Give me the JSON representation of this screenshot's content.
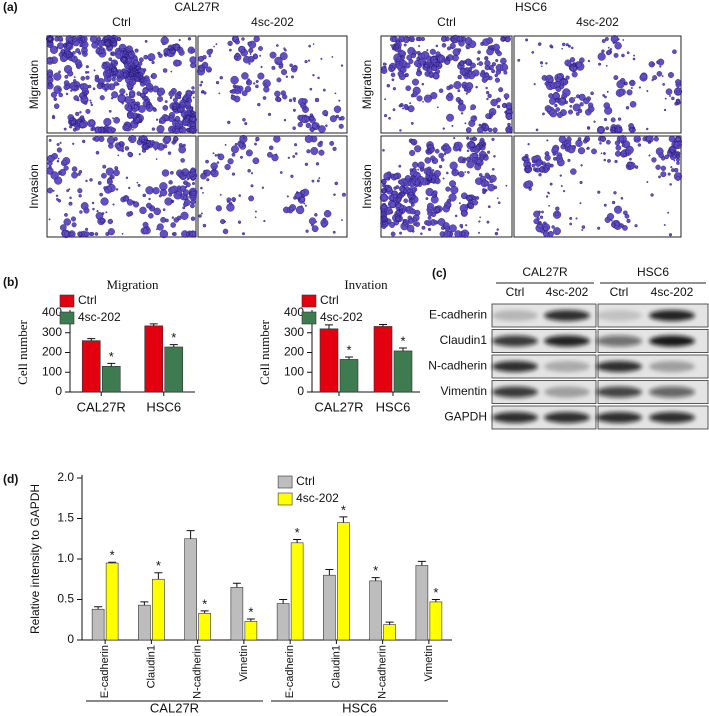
{
  "panel_a": {
    "label": "(a)",
    "blocks": [
      {
        "title": "CAL27R",
        "columns": [
          "Ctrl",
          "4sc-202"
        ],
        "rows": [
          "Migration",
          "Invasion"
        ]
      },
      {
        "title": "HSC6",
        "columns": [
          "Ctrl",
          "4sc-202"
        ],
        "rows": [
          "Migration",
          "Invasion"
        ]
      }
    ]
  },
  "chart_data": [
    {
      "type": "bar",
      "label": "(b)",
      "title": "Migration",
      "ylabel": "Cell number",
      "categories": [
        "CAL27R",
        "HSC6"
      ],
      "series": [
        {
          "name": "Ctrl",
          "color": "#e3000f",
          "values": [
            260,
            335
          ],
          "errors": [
            10,
            10
          ],
          "annotations": [
            null,
            null
          ]
        },
        {
          "name": "4sc-202",
          "color": "#3e7b50",
          "values": [
            130,
            228
          ],
          "errors": [
            15,
            12
          ],
          "annotations": [
            "*",
            "*"
          ]
        }
      ],
      "ylim": [
        0,
        400
      ],
      "yticks": [
        0,
        100,
        200,
        300,
        400
      ],
      "legend": "upper left"
    },
    {
      "type": "bar",
      "title": "Invation",
      "ylabel": "Cell number",
      "categories": [
        "CAL27R",
        "HSC6"
      ],
      "series": [
        {
          "name": "Ctrl",
          "color": "#e3000f",
          "values": [
            320,
            332
          ],
          "errors": [
            20,
            10
          ],
          "annotations": [
            null,
            null
          ]
        },
        {
          "name": "4sc-202",
          "color": "#3e7b50",
          "values": [
            165,
            208
          ],
          "errors": [
            12,
            15
          ],
          "annotations": [
            "*",
            "*"
          ]
        }
      ],
      "ylim": [
        0,
        400
      ],
      "yticks": [
        0,
        100,
        200,
        300,
        400
      ],
      "legend": "upper left"
    },
    {
      "type": "bar",
      "label": "(d)",
      "ylabel": "Relative intensity to GAPDH",
      "categories": [
        "E-cadherin",
        "Claudin1",
        "N-cadherin",
        "Vimetin",
        "E-cadherin",
        "Claudin1",
        "N-cadherin",
        "Vimetin"
      ],
      "groups": [
        "CAL27R",
        "HSC6"
      ],
      "series": [
        {
          "name": "Ctrl",
          "color": "#bdbdbd",
          "values": [
            0.38,
            0.43,
            1.25,
            0.65,
            0.45,
            0.8,
            0.73,
            0.92
          ],
          "errors": [
            0.03,
            0.04,
            0.1,
            0.05,
            0.05,
            0.07,
            0.04,
            0.05
          ],
          "annotations": [
            null,
            null,
            null,
            null,
            null,
            null,
            "*",
            null
          ]
        },
        {
          "name": "4sc-202",
          "color": "#ffff00",
          "values": [
            0.95,
            0.75,
            0.33,
            0.23,
            1.2,
            1.45,
            0.19,
            0.47
          ],
          "errors": [
            0.01,
            0.08,
            0.03,
            0.03,
            0.04,
            0.07,
            0.03,
            0.03
          ],
          "annotations": [
            "*",
            "*",
            "*",
            "*",
            "*",
            "*",
            null,
            "*"
          ]
        }
      ],
      "ylim": [
        0,
        2
      ],
      "yticks": [
        0,
        0.5,
        {
          "value": 1,
          "label": "1.0"
        },
        1.5,
        {
          "value": 2,
          "label": "2.0"
        }
      ],
      "legend": "upper right"
    }
  ],
  "panel_c": {
    "label": "(c)",
    "groups": [
      "CAL27R",
      "HSC6"
    ],
    "columns": [
      "Ctrl",
      "4sc-202",
      "Ctrl",
      "4sc-202"
    ],
    "rows": [
      "E-cadherin",
      "Claudin1",
      "N-cadherin",
      "Vimentin",
      "GAPDH"
    ]
  }
}
